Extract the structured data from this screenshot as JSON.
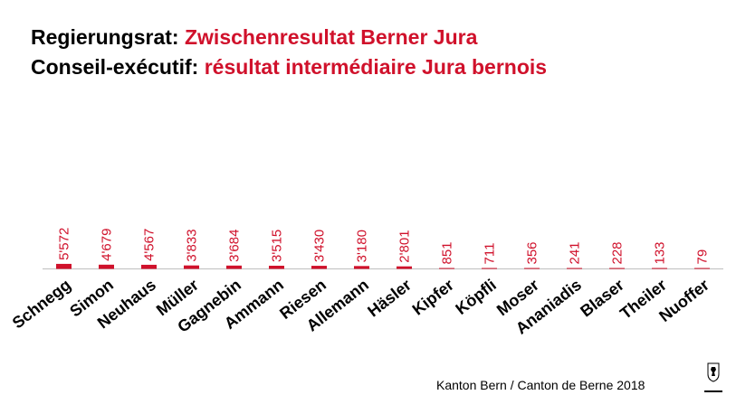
{
  "title": {
    "line1_lead": "Regierungsrat:",
    "line1_accent": "Zwischenresultat Berner Jura",
    "line2_lead": "Conseil-exécutif:",
    "line2_accent": "résultat intermédiaire Jura bernois"
  },
  "footer": {
    "source": "Kanton Bern / Canton de Berne 2018"
  },
  "colors": {
    "accent": "#d0112b",
    "text": "#000000",
    "axis": "#bfbfbf"
  },
  "logo_icon": "bern-bear-crest-icon",
  "chart_data": {
    "type": "bar",
    "categories": [
      "Schnegg",
      "Simon",
      "Neuhaus",
      "Müller",
      "Gagnebin",
      "Ammann",
      "Riesen",
      "Allemann",
      "Häsler",
      "Kipfer",
      "Köpfli",
      "Moser",
      "Ananiadis",
      "Blaser",
      "Theiler",
      "Nuoffer"
    ],
    "values": [
      5572,
      4679,
      4567,
      3833,
      3684,
      3515,
      3430,
      3180,
      2801,
      851,
      711,
      356,
      241,
      228,
      133,
      79
    ],
    "value_labels": [
      "5'572",
      "4'679",
      "4'567",
      "3'833",
      "3'684",
      "3'515",
      "3'430",
      "3'180",
      "2'801",
      "851",
      "711",
      "356",
      "241",
      "228",
      "133",
      "79"
    ],
    "ylim": [
      0,
      70000
    ],
    "grid": false,
    "legend": "none",
    "bar_color": "#d0112b"
  }
}
